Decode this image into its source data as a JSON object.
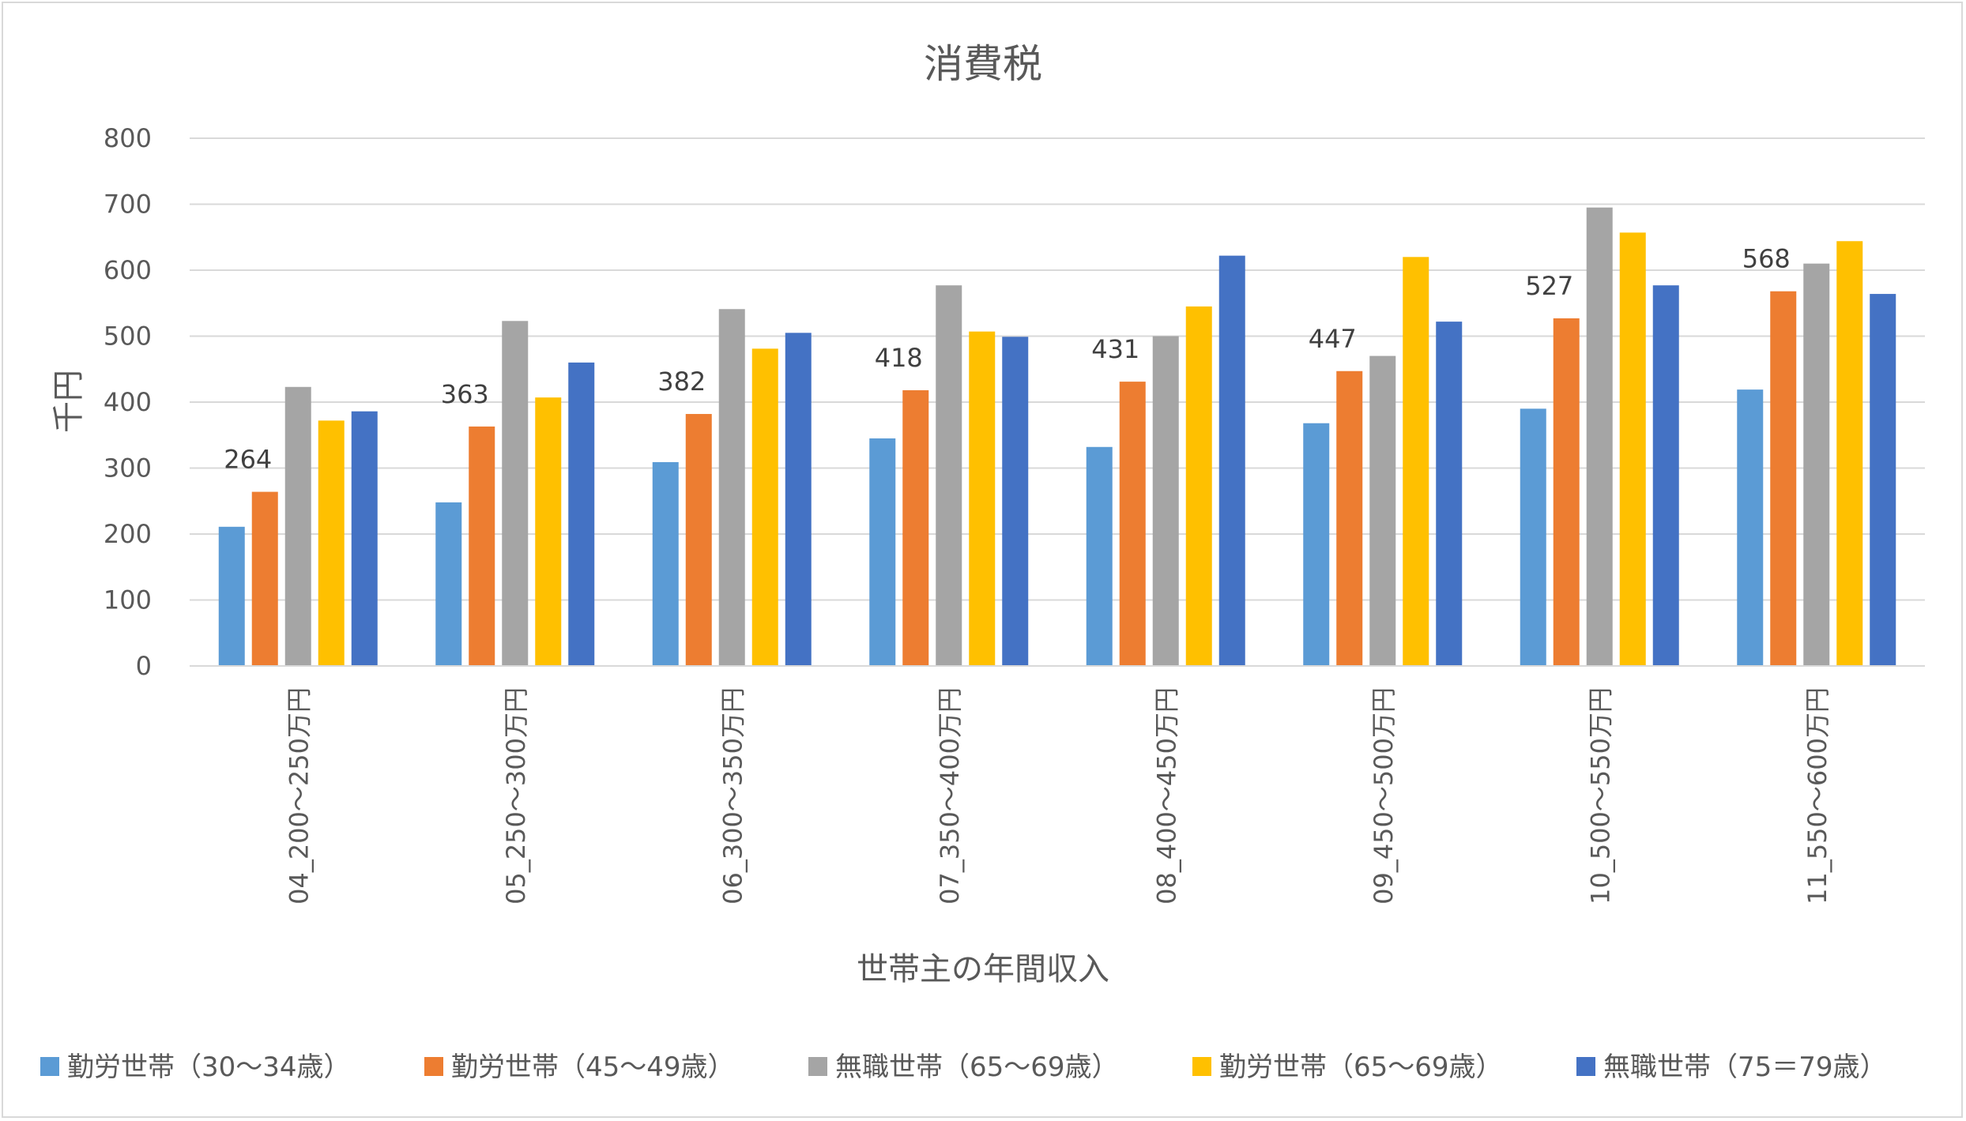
{
  "chart_data": {
    "type": "bar",
    "title": "消費税",
    "xlabel": "世帯主の年間収入",
    "ylabel": "千円",
    "ylim": [
      0,
      800
    ],
    "yticks": [
      0,
      100,
      200,
      300,
      400,
      500,
      600,
      700,
      800
    ],
    "grid": true,
    "legend_position": "bottom",
    "categories": [
      "04_200～250万円",
      "05_250～300万円",
      "06_300～350万円",
      "07_350～400万円",
      "08_400～450万円",
      "09_450～500万円",
      "10_500～550万円",
      "11_550～600万円"
    ],
    "series": [
      {
        "name": "勤労世帯（30～34歳）",
        "color": "#5b9bd5",
        "values": [
          211,
          248,
          309,
          345,
          332,
          368,
          390,
          419
        ]
      },
      {
        "name": "勤労世帯（45～49歳）",
        "color": "#ed7d31",
        "values": [
          264,
          363,
          382,
          418,
          431,
          447,
          527,
          568
        ],
        "data_labels": true
      },
      {
        "name": "無職世帯（65～69歳）",
        "color": "#a5a5a5",
        "values": [
          423,
          523,
          541,
          577,
          500,
          470,
          695,
          610
        ]
      },
      {
        "name": "勤労世帯（65～69歳）",
        "color": "#ffc000",
        "values": [
          372,
          407,
          481,
          507,
          545,
          620,
          657,
          644
        ]
      },
      {
        "name": "無職世帯（75＝79歳）",
        "color": "#4472c4",
        "values": [
          386,
          460,
          505,
          499,
          622,
          522,
          577,
          564
        ]
      }
    ]
  }
}
